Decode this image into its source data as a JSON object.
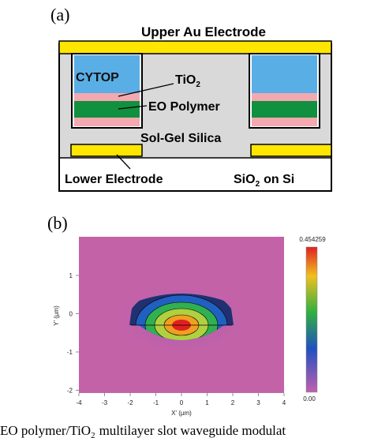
{
  "panel_a": {
    "label": "(a)",
    "top_electrode": "Upper Au Electrode",
    "cytop": "CYTOP",
    "tio2": {
      "text": "TiO",
      "sub": "2"
    },
    "eo_polymer": "EO Polymer",
    "sol_gel": "Sol-Gel Silica",
    "lower_electrode": "Lower Electrode",
    "substrate": {
      "text": "SiO",
      "sub": "2",
      "suffix": "on Si"
    }
  },
  "panel_b": {
    "label": "(b)",
    "x_label": "X' (µm)",
    "y_label": "Y' (µm)",
    "x_ticks": [
      "-4",
      "-3",
      "-2",
      "-1",
      "0",
      "1",
      "2",
      "3",
      "4"
    ],
    "y_ticks": [
      "1",
      "0",
      "-1",
      "-2"
    ],
    "colorbar_max": "0.454259",
    "colorbar_min": "0.00"
  },
  "caption": {
    "text": "EO polymer/TiO",
    "sub": "2",
    "suffix": "multilayer slot waveguide modulat"
  }
}
